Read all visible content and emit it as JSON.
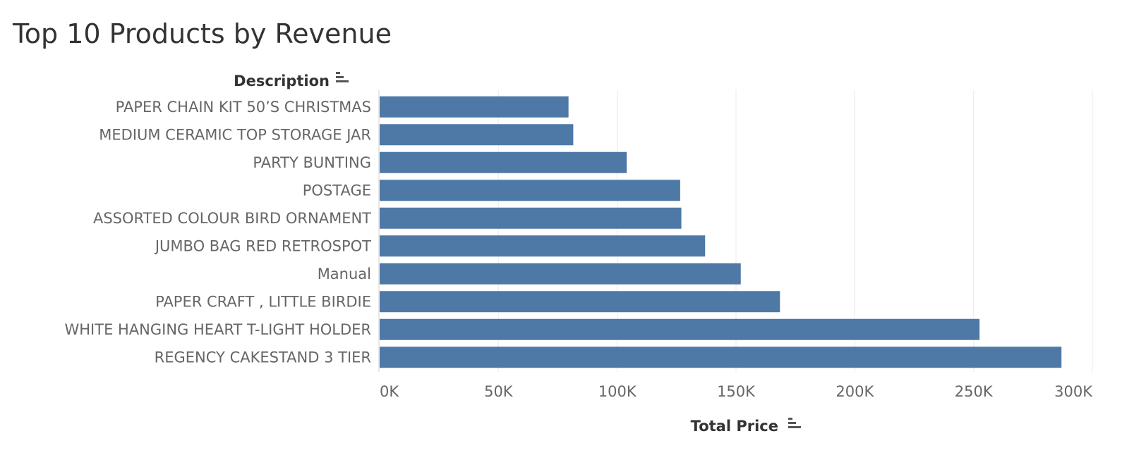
{
  "chart_data": {
    "type": "bar",
    "orientation": "horizontal",
    "title": "Top 10 Products by Revenue",
    "ylabel": "Description",
    "xlabel": "Total Price",
    "categories": [
      "PAPER CHAIN KIT 50’S CHRISTMAS",
      "MEDIUM CERAMIC TOP STORAGE JAR",
      "PARTY BUNTING",
      "POSTAGE",
      "ASSORTED COLOUR BIRD ORNAMENT",
      "JUMBO BAG RED RETROSPOT",
      "Manual",
      "PAPER CRAFT , LITTLE BIRDIE",
      "WHITE HANGING HEART T-LIGHT HOLDER",
      "REGENCY CAKESTAND 3 TIER"
    ],
    "values": [
      79500,
      81500,
      104000,
      126500,
      127000,
      137000,
      152000,
      168500,
      252500,
      287000
    ],
    "xlim": [
      0,
      300000
    ],
    "xticks": [
      0,
      50000,
      100000,
      150000,
      200000,
      250000,
      300000
    ],
    "xtick_labels": [
      "0K",
      "50K",
      "100K",
      "150K",
      "200K",
      "250K",
      "300K"
    ],
    "bar_color": "#4e79a7",
    "grid": true,
    "legend": "none"
  }
}
